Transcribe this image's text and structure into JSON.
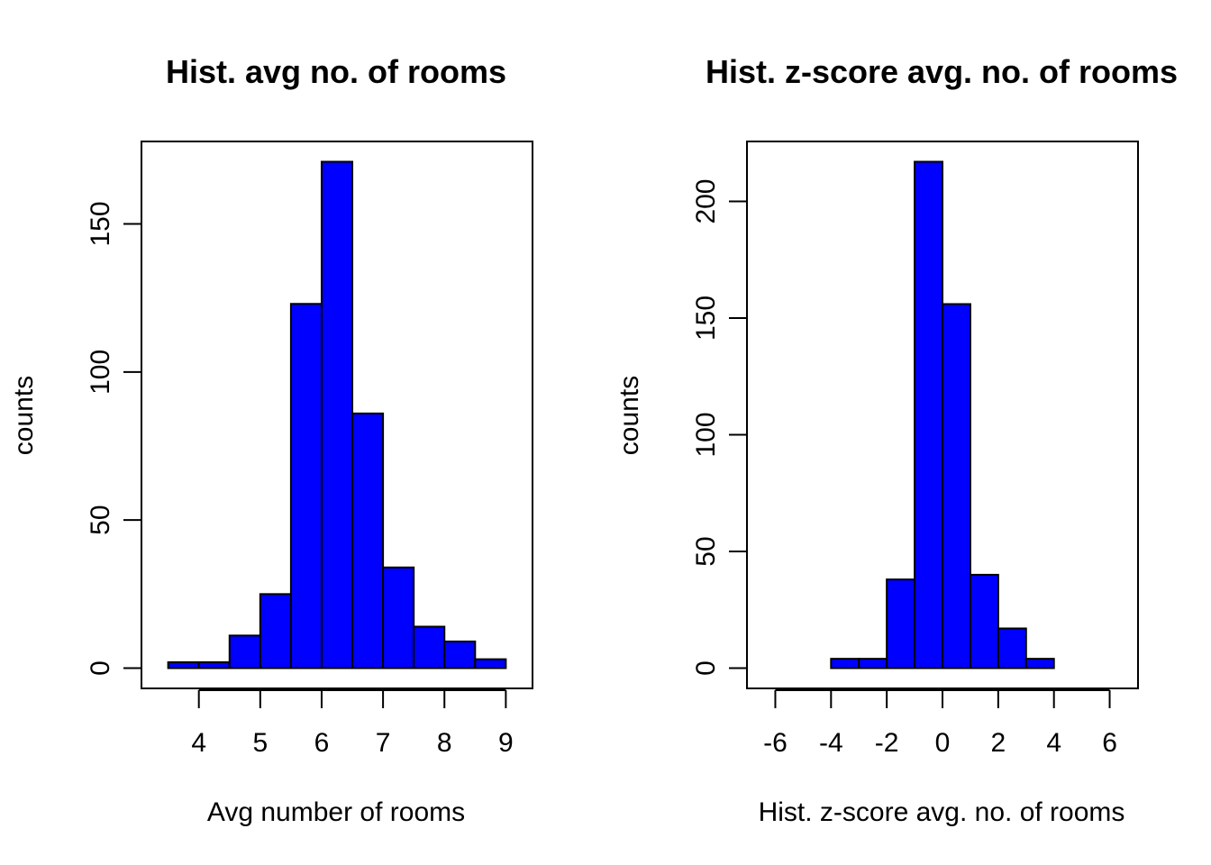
{
  "chart_data": [
    {
      "type": "bar",
      "subtype": "histogram",
      "title": "Hist. avg no. of rooms",
      "xlabel": "Avg number of rooms",
      "ylabel": "counts",
      "bin_edges": [
        3.5,
        4,
        4.5,
        5,
        5.5,
        6,
        6.5,
        7,
        7.5,
        8,
        8.5,
        9
      ],
      "values": [
        2,
        2,
        11,
        25,
        123,
        171,
        86,
        34,
        14,
        9,
        3
      ],
      "xlim": [
        3.3,
        9.2
      ],
      "ylim": [
        0,
        171
      ],
      "xticks": [
        4,
        5,
        6,
        7,
        8,
        9
      ],
      "yticks": [
        0,
        50,
        100,
        150
      ],
      "bar_color": "#0000ff",
      "grid": false
    },
    {
      "type": "bar",
      "subtype": "histogram",
      "title": "Hist. z-score avg. no. of rooms",
      "xlabel": "Hist. z-score avg. no. of rooms",
      "ylabel": "counts",
      "bin_edges": [
        -4,
        -3,
        -2,
        -1,
        0,
        1,
        2,
        3,
        4
      ],
      "values": [
        4,
        4,
        38,
        217,
        156,
        40,
        17,
        4
      ],
      "xlim": [
        -6.5,
        6.5
      ],
      "ylim": [
        0,
        217
      ],
      "xticks": [
        -6,
        -4,
        -2,
        0,
        2,
        4,
        6
      ],
      "yticks": [
        0,
        50,
        100,
        150,
        200
      ],
      "bar_color": "#0000ff",
      "grid": false
    }
  ]
}
